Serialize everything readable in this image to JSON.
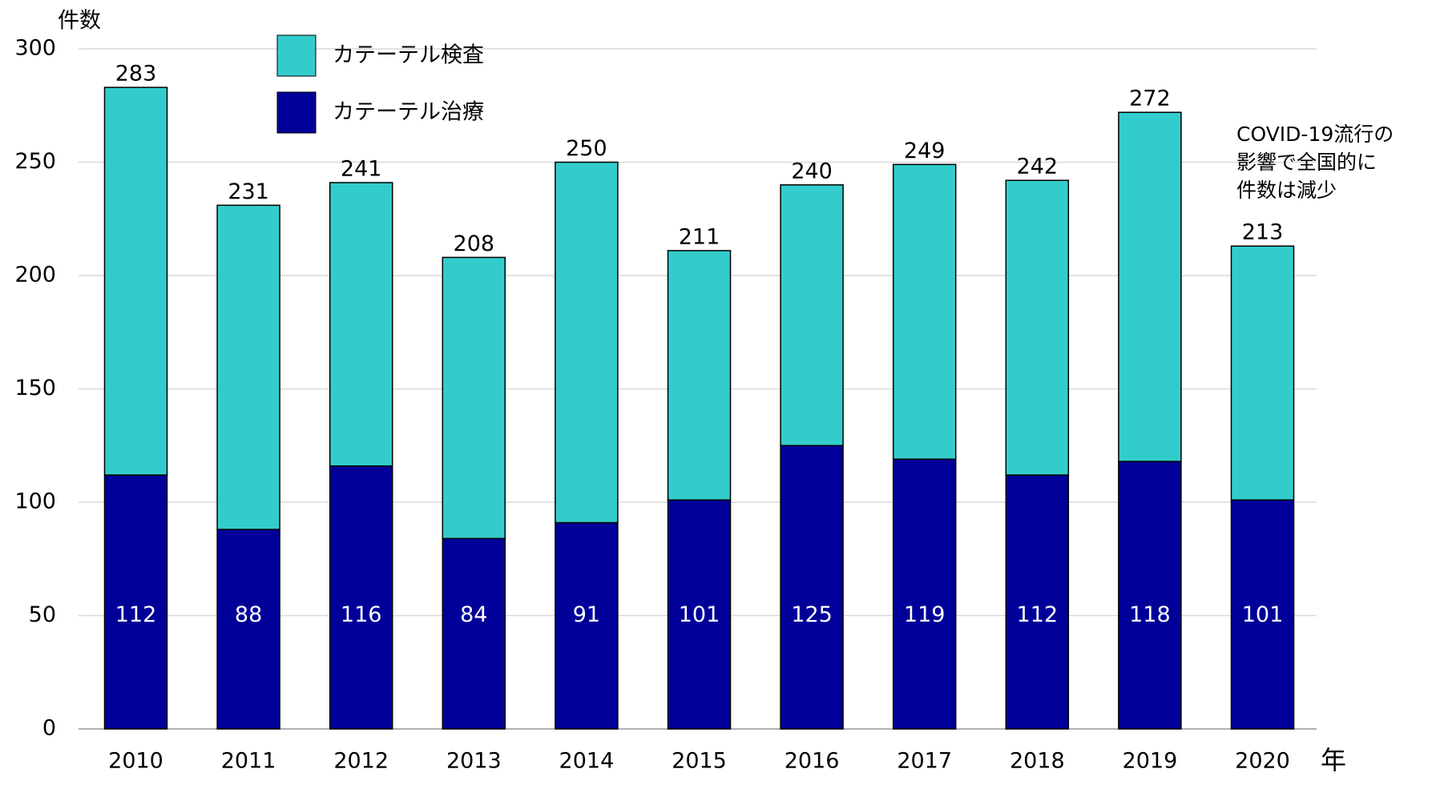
{
  "chart_data": {
    "type": "stacked_bar",
    "y_label": "件数",
    "x_label": "年",
    "categories": [
      "2010",
      "2011",
      "2012",
      "2013",
      "2014",
      "2015",
      "2016",
      "2017",
      "2018",
      "2019",
      "2020"
    ],
    "series": [
      {
        "name": "カテーテル治療",
        "color": "#000099",
        "values": [
          112,
          88,
          116,
          84,
          91,
          101,
          125,
          119,
          112,
          118,
          101
        ]
      },
      {
        "name": "カテーテル検査",
        "color": "#33cccc",
        "values": [
          171,
          143,
          125,
          124,
          159,
          110,
          115,
          130,
          130,
          154,
          112
        ]
      }
    ],
    "totals": [
      283,
      231,
      241,
      208,
      250,
      211,
      240,
      249,
      242,
      272,
      213
    ],
    "annotation": [
      "COVID-19流行の",
      "影響で全国的に",
      "件数は減少"
    ],
    "ylim": [
      0,
      300
    ],
    "yticks": [
      0,
      50,
      100,
      150,
      200,
      250,
      300
    ],
    "grid": true
  }
}
